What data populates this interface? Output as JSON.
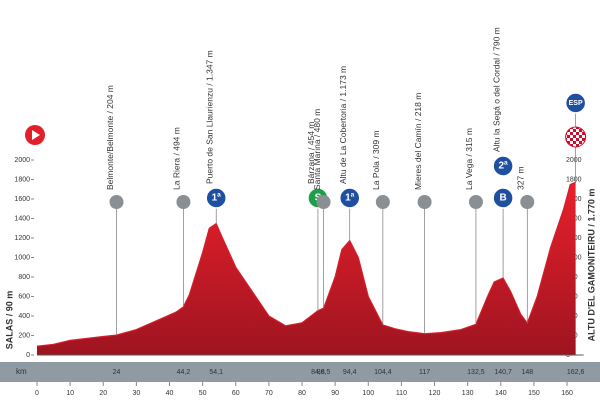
{
  "chart_data": {
    "type": "area",
    "x_unit_label": "km",
    "start": {
      "label": "SALAS / 90 m"
    },
    "finish": {
      "label": "ALTU D'EL GAMONITEIRU / 1.770 m",
      "badges": [
        "ESP"
      ]
    },
    "series": [
      {
        "color": "#d41f2b",
        "x": [
          0,
          5,
          10,
          20,
          24,
          30,
          38,
          42,
          44.2,
          46,
          50,
          52,
          54.1,
          56,
          60,
          65,
          70,
          75,
          80,
          84.8,
          86.5,
          90,
          92,
          94.4,
          97,
          100,
          104.4,
          108,
          112,
          117,
          122,
          128,
          132.5,
          136,
          138,
          140.7,
          143,
          146,
          148,
          151,
          155,
          159,
          161,
          162.6
        ],
        "values": [
          90,
          110,
          150,
          190,
          204,
          260,
          380,
          440,
          494,
          620,
          1050,
          1300,
          1347,
          1200,
          900,
          650,
          400,
          300,
          330,
          454,
          480,
          800,
          1080,
          1173,
          1000,
          600,
          309,
          270,
          240,
          218,
          230,
          260,
          315,
          600,
          750,
          790,
          650,
          420,
          327,
          600,
          1100,
          1500,
          1750,
          1770
        ]
      }
    ],
    "waypoints": [
      {
        "label": "Belmonte/Belmonte / 204 m",
        "km": 24
      },
      {
        "label": "La Riera / 494 m",
        "km": {
          "value": 44.2,
          "label": "44,2"
        }
      },
      {
        "label": "Puerto de San Llaurienzu / 1.347 m",
        "km": {
          "value": 54.1,
          "label": "54,1"
        },
        "badges": [
          "1ª"
        ]
      },
      {
        "label": "Bárzana / 454 m",
        "km": {
          "value": 84.8,
          "label": "84,8"
        },
        "badges": [
          "S"
        ]
      },
      {
        "label": "Santa Marina / 480 m",
        "km": {
          "value": 86.5,
          "label": "86,5"
        }
      },
      {
        "label": "Altu de La Cobertoria / 1.173 m",
        "km": {
          "value": 94.4,
          "label": "94,4"
        },
        "badges": [
          "1ª"
        ]
      },
      {
        "label": "La Pola / 309 m",
        "km": {
          "value": 104.4,
          "label": "104,4"
        }
      },
      {
        "label": "Mieres del Camín / 218 m",
        "km": 117
      },
      {
        "label": "La Vega / 315 m",
        "km": {
          "value": 132.5,
          "label": "132,5"
        }
      },
      {
        "label": "Altu la Segá o del Cordal / 790 m",
        "km": {
          "value": 140.7,
          "label": "140,7"
        },
        "badges": [
          "B",
          "2ª"
        ]
      },
      {
        "label": "327 m",
        "km": 148
      },
      {
        "km": {
          "value": 162.6,
          "label": "162,6"
        }
      }
    ],
    "xlim": [
      0,
      165
    ],
    "xticks": [
      0,
      10,
      20,
      30,
      40,
      50,
      60,
      70,
      80,
      90,
      100,
      110,
      120,
      130,
      140,
      150,
      160
    ],
    "ylim": [
      0,
      2000
    ],
    "yticks": [
      0,
      200,
      400,
      600,
      800,
      1000,
      1200,
      1400,
      1600,
      1800,
      2000
    ]
  }
}
